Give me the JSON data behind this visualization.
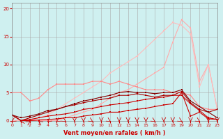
{
  "background_color": "#cff0f0",
  "grid_color": "#aaaaaa",
  "xlabel": "Vent moyen/en rafales ( km/h )",
  "xlabel_color": "#cc0000",
  "tick_color": "#cc0000",
  "xlim": [
    0,
    23
  ],
  "ylim": [
    0,
    21
  ],
  "yticks": [
    0,
    5,
    10,
    15,
    20
  ],
  "xticks": [
    0,
    1,
    2,
    3,
    4,
    5,
    6,
    7,
    8,
    9,
    10,
    11,
    12,
    13,
    14,
    15,
    16,
    17,
    18,
    19,
    20,
    21,
    22,
    23
  ],
  "series": [
    {
      "x": [
        0,
        1,
        2,
        3,
        4,
        5,
        6,
        7,
        8,
        9,
        10,
        11,
        12,
        13,
        14,
        15,
        16,
        17,
        18,
        19,
        20,
        21,
        22,
        23
      ],
      "y": [
        0,
        0,
        0,
        0,
        0,
        0,
        0.5,
        1.0,
        1.5,
        2.0,
        3.0,
        4.0,
        5.0,
        5.5,
        6.5,
        7.5,
        8.5,
        9.5,
        14.0,
        18.0,
        16.5,
        7.0,
        10.0,
        2.0
      ],
      "color": "#ffaaaa",
      "marker": "s",
      "markersize": 2,
      "linewidth": 0.8
    },
    {
      "x": [
        0,
        1,
        2,
        3,
        4,
        5,
        6,
        7,
        8,
        9,
        10,
        11,
        12,
        13,
        14,
        15,
        16,
        17,
        18,
        19,
        20,
        21,
        22,
        23
      ],
      "y": [
        0,
        0,
        0,
        0.5,
        1.0,
        2.0,
        3.0,
        4.0,
        5.0,
        6.0,
        7.0,
        8.5,
        9.5,
        10.5,
        11.5,
        13.0,
        14.5,
        16.0,
        17.5,
        17.0,
        15.5,
        6.0,
        10.0,
        2.0
      ],
      "color": "#ffbbbb",
      "marker": "s",
      "markersize": 2,
      "linewidth": 0.8
    },
    {
      "x": [
        0,
        1,
        2,
        3,
        4,
        5,
        6,
        7,
        8,
        9,
        10,
        11,
        12,
        13,
        14,
        15,
        16,
        17,
        18,
        19,
        20,
        21,
        22,
        23
      ],
      "y": [
        5,
        5,
        3.5,
        4.0,
        5.5,
        6.5,
        6.5,
        6.5,
        6.5,
        7.0,
        7.0,
        6.5,
        7.0,
        6.5,
        6.0,
        5.5,
        5.5,
        5.5,
        5.0,
        5.0,
        4.5,
        2.5,
        2.0,
        2.0
      ],
      "color": "#ff8888",
      "marker": "s",
      "markersize": 2,
      "linewidth": 0.8
    },
    {
      "x": [
        0,
        1,
        2,
        3,
        4,
        5,
        6,
        7,
        8,
        9,
        10,
        11,
        12,
        13,
        14,
        15,
        16,
        17,
        18,
        19,
        20,
        21,
        22,
        23
      ],
      "y": [
        1,
        0,
        0,
        0.1,
        0.2,
        0.3,
        0.5,
        0.5,
        0.8,
        1.0,
        1.2,
        1.5,
        1.5,
        1.8,
        2.0,
        2.2,
        2.5,
        2.8,
        3.0,
        5.0,
        0.8,
        1.5,
        0.3,
        0.2
      ],
      "color": "#cc0000",
      "marker": "s",
      "markersize": 2,
      "linewidth": 0.8
    },
    {
      "x": [
        0,
        1,
        2,
        3,
        4,
        5,
        6,
        7,
        8,
        9,
        10,
        11,
        12,
        13,
        14,
        15,
        16,
        17,
        18,
        19,
        20,
        21,
        22,
        23
      ],
      "y": [
        1,
        0,
        0.2,
        0.5,
        0.8,
        1.0,
        1.2,
        1.5,
        2.0,
        2.2,
        2.5,
        2.8,
        3.0,
        3.2,
        3.5,
        3.8,
        4.0,
        4.2,
        4.5,
        4.5,
        3.0,
        1.8,
        0.5,
        0.2
      ],
      "color": "#cc0000",
      "marker": "s",
      "markersize": 2,
      "linewidth": 0.8
    },
    {
      "x": [
        0,
        1,
        2,
        3,
        4,
        5,
        6,
        7,
        8,
        9,
        10,
        11,
        12,
        13,
        14,
        15,
        16,
        17,
        18,
        19,
        20,
        21,
        22,
        23
      ],
      "y": [
        1,
        0,
        0.5,
        1.0,
        1.5,
        2.0,
        2.5,
        2.8,
        3.2,
        3.5,
        3.8,
        4.0,
        4.5,
        4.5,
        4.8,
        4.5,
        4.2,
        4.5,
        4.5,
        5.2,
        3.2,
        2.0,
        1.5,
        2.0
      ],
      "color": "#aa0000",
      "marker": "s",
      "markersize": 2,
      "linewidth": 0.8
    },
    {
      "x": [
        0,
        1,
        2,
        3,
        4,
        5,
        6,
        7,
        8,
        9,
        10,
        11,
        12,
        13,
        14,
        15,
        16,
        17,
        18,
        19,
        20,
        21,
        22,
        23
      ],
      "y": [
        1,
        0.5,
        0.8,
        1.2,
        1.8,
        2.0,
        2.5,
        3.0,
        3.5,
        3.8,
        4.2,
        4.5,
        5.0,
        5.2,
        5.0,
        5.0,
        4.8,
        5.0,
        5.0,
        5.5,
        3.5,
        2.5,
        1.5,
        0.5
      ],
      "color": "#880000",
      "marker": "s",
      "markersize": 2,
      "linewidth": 0.8
    }
  ],
  "arrow_angles": [
    225,
    180,
    45,
    135,
    225,
    225,
    315,
    270,
    270,
    315,
    270,
    315,
    270,
    270,
    270,
    270,
    315,
    270,
    270,
    315,
    270,
    315,
    270,
    270
  ]
}
